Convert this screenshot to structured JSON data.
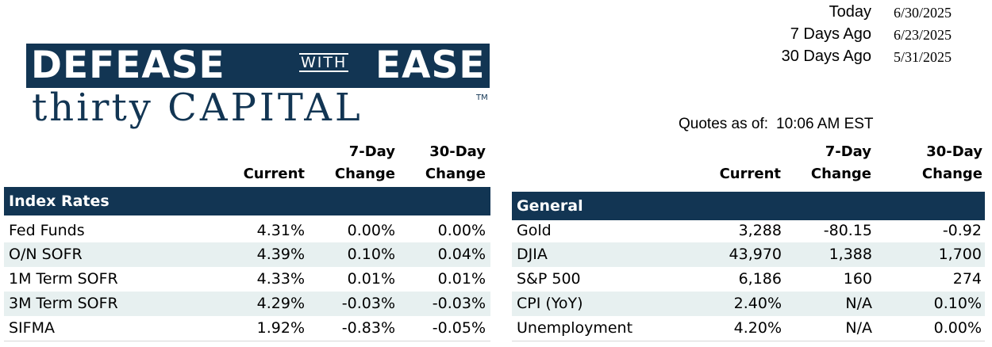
{
  "logo": {
    "line1_left": "DEFEASE",
    "line1_mid": "WITH",
    "line1_right": "EASE",
    "line2_a": "thirty",
    "line2_b": "CAPITAL",
    "tm": "TM"
  },
  "dates": [
    {
      "label": "Today",
      "value": "6/30/2025"
    },
    {
      "label": "7 Days Ago",
      "value": "6/23/2025"
    },
    {
      "label": "30 Days Ago",
      "value": "5/31/2025"
    }
  ],
  "quotes": {
    "label": "Quotes as of:",
    "value": "10:06 AM EST"
  },
  "headers": {
    "current": "Current",
    "seven_line1": "7-Day",
    "seven_line2": "Change",
    "thirty_line1": "30-Day",
    "thirty_line2": "Change"
  },
  "index_rates": {
    "title": "Index Rates",
    "rows": [
      {
        "name": "Fed Funds",
        "current": "4.31%",
        "seven": "0.00%",
        "thirty": "0.00%"
      },
      {
        "name": "O/N SOFR",
        "current": "4.39%",
        "seven": "0.10%",
        "thirty": "0.04%"
      },
      {
        "name": "1M Term SOFR",
        "current": "4.33%",
        "seven": "0.01%",
        "thirty": "0.01%"
      },
      {
        "name": "3M Term SOFR",
        "current": "4.29%",
        "seven": "-0.03%",
        "thirty": "-0.03%"
      },
      {
        "name": "SIFMA",
        "current": "1.92%",
        "seven": "-0.83%",
        "thirty": "-0.05%"
      }
    ]
  },
  "general": {
    "title": "General",
    "rows": [
      {
        "name": "Gold",
        "current": "3,288",
        "seven": "-80.15",
        "thirty": "-0.92"
      },
      {
        "name": "DJIA",
        "current": "43,970",
        "seven": "1,388",
        "thirty": "1,700"
      },
      {
        "name": "S&P 500",
        "current": "6,186",
        "seven": "160",
        "thirty": "274"
      },
      {
        "name": "CPI (YoY)",
        "current": "2.40%",
        "seven": "N/A",
        "thirty": "0.10%"
      },
      {
        "name": "Unemployment",
        "current": "4.20%",
        "seven": "N/A",
        "thirty": "0.00%"
      }
    ]
  },
  "colors": {
    "brand_navy": "#123553",
    "row_alt": "#e7f0f0"
  }
}
